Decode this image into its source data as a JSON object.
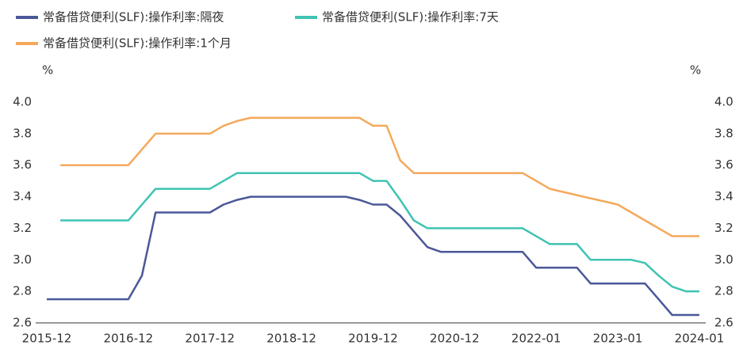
{
  "chart_data": {
    "type": "line",
    "y_label": "%",
    "y2_label": "%",
    "categories": [
      "2015-12",
      null,
      null,
      null,
      null,
      null,
      "2016-12",
      null,
      null,
      null,
      null,
      null,
      "2017-12",
      null,
      null,
      null,
      null,
      null,
      "2018-12",
      null,
      null,
      null,
      null,
      null,
      "2019-12",
      null,
      null,
      null,
      null,
      null,
      "2020-12",
      null,
      null,
      null,
      null,
      null,
      "2022-01",
      null,
      null,
      null,
      null,
      null,
      "2023-01",
      null,
      null,
      null,
      null,
      null,
      "2024-01"
    ],
    "series": [
      {
        "name": "常备借贷便利(SLF):操作利率:隔夜",
        "color": "#4b5898",
        "values": [
          2.75,
          2.75,
          2.75,
          2.75,
          2.75,
          2.75,
          2.75,
          2.9,
          3.3,
          3.3,
          3.3,
          3.3,
          3.3,
          3.35,
          3.38,
          3.4,
          3.4,
          3.4,
          3.4,
          3.4,
          3.4,
          3.4,
          3.4,
          3.38,
          3.35,
          3.35,
          3.28,
          3.18,
          3.08,
          3.05,
          3.05,
          3.05,
          3.05,
          3.05,
          3.05,
          3.05,
          2.95,
          2.95,
          2.95,
          2.95,
          2.85,
          2.85,
          2.85,
          2.85,
          2.85,
          2.75,
          2.65,
          2.65,
          2.65
        ]
      },
      {
        "name": "常备借贷便利(SLF):操作利率:7天",
        "color": "#3fc3b3",
        "values": [
          null,
          3.25,
          3.25,
          3.25,
          3.25,
          3.25,
          3.25,
          3.35,
          3.45,
          3.45,
          3.45,
          3.45,
          3.45,
          3.5,
          3.55,
          3.55,
          3.55,
          3.55,
          3.55,
          3.55,
          3.55,
          3.55,
          3.55,
          3.55,
          3.5,
          3.5,
          3.38,
          3.25,
          3.2,
          3.2,
          3.2,
          3.2,
          3.2,
          3.2,
          3.2,
          3.2,
          3.15,
          3.1,
          3.1,
          3.1,
          3.0,
          3.0,
          3.0,
          3.0,
          2.98,
          2.9,
          2.83,
          2.8,
          2.8
        ]
      },
      {
        "name": "常备借贷便利(SLF):操作利率:1个月",
        "color": "#f4a95c",
        "values": [
          null,
          3.6,
          3.6,
          3.6,
          3.6,
          3.6,
          3.6,
          3.7,
          3.8,
          3.8,
          3.8,
          3.8,
          3.8,
          3.85,
          3.88,
          3.9,
          3.9,
          3.9,
          3.9,
          3.9,
          3.9,
          3.9,
          3.9,
          3.9,
          3.85,
          3.85,
          3.63,
          3.55,
          3.55,
          3.55,
          3.55,
          3.55,
          3.55,
          3.55,
          3.55,
          3.55,
          3.5,
          3.45,
          3.43,
          3.41,
          3.39,
          3.37,
          3.35,
          3.3,
          3.25,
          3.2,
          3.15,
          3.15,
          3.15
        ]
      }
    ],
    "ylim": [
      2.6,
      4.0
    ],
    "yticks": [
      {
        "value": 2.6,
        "label": "2.6"
      },
      {
        "value": 2.8,
        "label": "2.8"
      },
      {
        "value": 3.0,
        "label": "3.0"
      },
      {
        "value": 3.2,
        "label": "3.2"
      },
      {
        "value": 3.4,
        "label": "3.4"
      },
      {
        "value": 3.6,
        "label": "3.6"
      },
      {
        "value": 3.8,
        "label": "3.8"
      },
      {
        "value": 4.0,
        "label": "4.0"
      }
    ],
    "y2lim": [
      2.6,
      4.0
    ],
    "y2ticks": [
      {
        "value": 2.6,
        "label": "2.6"
      },
      {
        "value": 2.8,
        "label": "2.8"
      },
      {
        "value": 3.0,
        "label": "3.0"
      },
      {
        "value": 3.2,
        "label": "3.2"
      },
      {
        "value": 3.4,
        "label": "3.4"
      },
      {
        "value": 3.6,
        "label": "3.6"
      },
      {
        "value": 3.8,
        "label": "3.8"
      },
      {
        "value": 4.0,
        "label": "4.0"
      }
    ],
    "grid": false
  }
}
